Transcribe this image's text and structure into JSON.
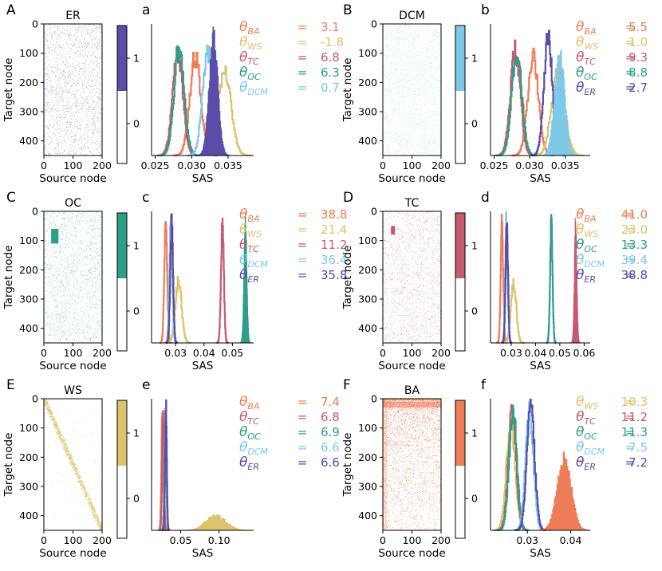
{
  "colors": {
    "ER": "#5a4ca8",
    "DCM": "#7ec8e8",
    "OC": "#2e9e86",
    "TC": "#c85a6e",
    "WS": "#dcc46c",
    "BA": "#ee7d57"
  },
  "common": {
    "source_label": "Source node",
    "target_label": "Target node",
    "sas_label": "SAS",
    "x_ticks": [
      "0",
      "100",
      "200"
    ],
    "y_ticks": [
      "0",
      "100",
      "200",
      "300",
      "400"
    ],
    "cb_ticks": [
      "0",
      "1"
    ]
  },
  "chart_data": [
    {
      "type": "heatmap",
      "panel": "A",
      "title": "ER",
      "model": "ER",
      "xlabel": "Source node",
      "ylabel": "Target node",
      "xlim": [
        0,
        200
      ],
      "ylim": [
        450,
        0
      ],
      "pattern": "uniform-sparse",
      "colorbar_ticks": [
        "0",
        "1"
      ]
    },
    {
      "type": "histogram",
      "panel": "a",
      "xlabel": "SAS",
      "model": "ER",
      "xlim": [
        0.0245,
        0.0385
      ],
      "xticks": [
        "0.025",
        "0.030",
        "0.035"
      ],
      "xtick_values": [
        0.025,
        0.03,
        0.035
      ],
      "series": [
        {
          "name": "BA",
          "mean": 0.0305,
          "sd": 0.00075,
          "style": "step"
        },
        {
          "name": "WS",
          "mean": 0.0345,
          "sd": 0.0009,
          "style": "step"
        },
        {
          "name": "TC",
          "mean": 0.0281,
          "sd": 0.0007,
          "style": "step"
        },
        {
          "name": "OC",
          "mean": 0.0283,
          "sd": 0.0007,
          "style": "step"
        },
        {
          "name": "DCM",
          "mean": 0.0322,
          "sd": 0.0007,
          "style": "step"
        },
        {
          "name": "ER",
          "mean": 0.033,
          "sd": 0.0006,
          "style": "filled"
        }
      ],
      "thetas": [
        {
          "label": "θ",
          "sub": "BA",
          "value": "3.1"
        },
        {
          "label": "θ",
          "sub": "WS",
          "value": "-1.8"
        },
        {
          "label": "θ",
          "sub": "TC",
          "value": "6.8"
        },
        {
          "label": "θ",
          "sub": "OC",
          "value": "6.3"
        },
        {
          "label": "θ",
          "sub": "DCM",
          "value": "0.7"
        }
      ]
    },
    {
      "type": "heatmap",
      "panel": "B",
      "title": "DCM",
      "model": "DCM",
      "xlabel": "Source node",
      "ylabel": "Target node",
      "xlim": [
        0,
        200
      ],
      "ylim": [
        450,
        0
      ],
      "pattern": "uniform-sparse",
      "colorbar_ticks": [
        "0",
        "1"
      ]
    },
    {
      "type": "histogram",
      "panel": "b",
      "xlabel": "SAS",
      "model": "DCM",
      "xlim": [
        0.0245,
        0.0385
      ],
      "xticks": [
        "0.025",
        "0.030",
        "0.035"
      ],
      "xtick_values": [
        0.025,
        0.03,
        0.035
      ],
      "series": [
        {
          "name": "BA",
          "mean": 0.0305,
          "sd": 0.00075,
          "style": "step"
        },
        {
          "name": "WS",
          "mean": 0.034,
          "sd": 0.0009,
          "style": "step"
        },
        {
          "name": "TC",
          "mean": 0.028,
          "sd": 0.0007,
          "style": "step"
        },
        {
          "name": "OC",
          "mean": 0.0282,
          "sd": 0.0007,
          "style": "step"
        },
        {
          "name": "ER",
          "mean": 0.0326,
          "sd": 0.0006,
          "style": "step"
        },
        {
          "name": "DCM",
          "mean": 0.0342,
          "sd": 0.0007,
          "style": "filled"
        }
      ],
      "thetas": [
        {
          "label": "θ",
          "sub": "BA",
          "value": "5.5"
        },
        {
          "label": "θ",
          "sub": "WS",
          "value": "1.0"
        },
        {
          "label": "θ",
          "sub": "TC",
          "value": "9.3"
        },
        {
          "label": "θ",
          "sub": "OC",
          "value": "8.8"
        },
        {
          "label": "θ",
          "sub": "ER",
          "value": "2.7"
        }
      ]
    },
    {
      "type": "heatmap",
      "panel": "C",
      "title": "OC",
      "model": "OC",
      "xlabel": "Source node",
      "ylabel": "Target node",
      "xlim": [
        0,
        200
      ],
      "ylim": [
        450,
        0
      ],
      "pattern": "block",
      "block": {
        "x0": 25,
        "x1": 50,
        "y0": 60,
        "y1": 110
      },
      "colorbar_ticks": [
        "0",
        "1"
      ]
    },
    {
      "type": "histogram",
      "panel": "c",
      "xlabel": "SAS",
      "model": "OC",
      "xlim": [
        0.0215,
        0.0575
      ],
      "xticks": [
        "0.03",
        "0.04",
        "0.05"
      ],
      "xtick_values": [
        0.03,
        0.04,
        0.05
      ],
      "series": [
        {
          "name": "BA",
          "mean": 0.0265,
          "sd": 0.0005,
          "style": "step"
        },
        {
          "name": "WS",
          "mean": 0.031,
          "sd": 0.0011,
          "style": "step"
        },
        {
          "name": "TC",
          "mean": 0.0465,
          "sd": 0.0005,
          "style": "step"
        },
        {
          "name": "DCM",
          "mean": 0.0283,
          "sd": 0.0005,
          "style": "step"
        },
        {
          "name": "ER",
          "mean": 0.0286,
          "sd": 0.0005,
          "style": "step"
        },
        {
          "name": "OC",
          "mean": 0.0546,
          "sd": 0.0005,
          "style": "filled"
        }
      ],
      "thetas": [
        {
          "label": "θ",
          "sub": "BA",
          "value": "38.8"
        },
        {
          "label": "θ",
          "sub": "WS",
          "value": "21.4"
        },
        {
          "label": "θ",
          "sub": "TC",
          "value": "11.2"
        },
        {
          "label": "θ",
          "sub": "DCM",
          "value": "36.4"
        },
        {
          "label": "θ",
          "sub": "ER",
          "value": "35.8"
        }
      ]
    },
    {
      "type": "heatmap",
      "panel": "D",
      "title": "TC",
      "model": "TC",
      "xlabel": "Source node",
      "ylabel": "Target node",
      "xlim": [
        0,
        200
      ],
      "ylim": [
        450,
        0
      ],
      "pattern": "block",
      "block": {
        "x0": 28,
        "x1": 42,
        "y0": 50,
        "y1": 80
      },
      "colorbar_ticks": [
        "0",
        "1"
      ]
    },
    {
      "type": "histogram",
      "panel": "d",
      "xlabel": "SAS",
      "model": "TC",
      "xlim": [
        0.0215,
        0.0625
      ],
      "xticks": [
        "0.03",
        "0.04",
        "0.05",
        "0.06"
      ],
      "xtick_values": [
        0.03,
        0.04,
        0.05,
        0.06
      ],
      "series": [
        {
          "name": "BA",
          "mean": 0.0262,
          "sd": 0.0005,
          "style": "step"
        },
        {
          "name": "WS",
          "mean": 0.031,
          "sd": 0.0011,
          "style": "step"
        },
        {
          "name": "OC",
          "mean": 0.0465,
          "sd": 0.0005,
          "style": "step"
        },
        {
          "name": "DCM",
          "mean": 0.028,
          "sd": 0.0005,
          "style": "step"
        },
        {
          "name": "ER",
          "mean": 0.0282,
          "sd": 0.0005,
          "style": "step"
        },
        {
          "name": "TC",
          "mean": 0.0565,
          "sd": 0.0005,
          "style": "filled"
        }
      ],
      "thetas": [
        {
          "label": "θ",
          "sub": "BA",
          "value": "41.0"
        },
        {
          "label": "θ",
          "sub": "WS",
          "value": "23.0"
        },
        {
          "label": "θ",
          "sub": "OC",
          "value": "13.3"
        },
        {
          "label": "θ",
          "sub": "DCM",
          "value": "39.4"
        },
        {
          "label": "θ",
          "sub": "ER",
          "value": "38.8"
        }
      ]
    },
    {
      "type": "heatmap",
      "panel": "E",
      "title": "WS",
      "model": "WS",
      "xlabel": "Source node",
      "ylabel": "Target node",
      "xlim": [
        0,
        200
      ],
      "ylim": [
        450,
        0
      ],
      "pattern": "diagonal",
      "colorbar_ticks": [
        "0",
        "1"
      ]
    },
    {
      "type": "histogram",
      "panel": "e",
      "xlabel": "SAS",
      "model": "WS",
      "xlim": [
        0.012,
        0.145
      ],
      "xticks": [
        "0.05",
        "0.10"
      ],
      "xtick_values": [
        0.05,
        0.1
      ],
      "series": [
        {
          "name": "BA",
          "mean": 0.026,
          "sd": 0.0012,
          "style": "step"
        },
        {
          "name": "TC",
          "mean": 0.027,
          "sd": 0.0012,
          "style": "step"
        },
        {
          "name": "OC",
          "mean": 0.03,
          "sd": 0.0012,
          "style": "step"
        },
        {
          "name": "DCM",
          "mean": 0.0305,
          "sd": 0.0011,
          "style": "step"
        },
        {
          "name": "ER",
          "mean": 0.0308,
          "sd": 0.0011,
          "style": "step"
        },
        {
          "name": "WS",
          "mean": 0.096,
          "sd": 0.013,
          "style": "filled"
        }
      ],
      "thetas": [
        {
          "label": "θ",
          "sub": "BA",
          "value": "7.4"
        },
        {
          "label": "θ",
          "sub": "TC",
          "value": "6.8"
        },
        {
          "label": "θ",
          "sub": "OC",
          "value": "6.9"
        },
        {
          "label": "θ",
          "sub": "DCM",
          "value": "6.6"
        },
        {
          "label": "θ",
          "sub": "ER",
          "value": "6.6"
        }
      ]
    },
    {
      "type": "heatmap",
      "panel": "F",
      "title": "BA",
      "model": "BA",
      "xlabel": "Source node",
      "ylabel": "Target node",
      "xlim": [
        0,
        200
      ],
      "ylim": [
        450,
        0
      ],
      "pattern": "preferential",
      "colorbar_ticks": [
        "0",
        "1"
      ]
    },
    {
      "type": "histogram",
      "panel": "f",
      "xlabel": "SAS",
      "model": "BA",
      "xlim": [
        0.0215,
        0.0445
      ],
      "xticks": [
        "0.03",
        "0.04"
      ],
      "xtick_values": [
        0.03,
        0.04
      ],
      "series": [
        {
          "name": "WS",
          "mean": 0.0262,
          "sd": 0.001,
          "style": "step"
        },
        {
          "name": "TC",
          "mean": 0.0265,
          "sd": 0.0009,
          "style": "step"
        },
        {
          "name": "OC",
          "mean": 0.0267,
          "sd": 0.0009,
          "style": "step"
        },
        {
          "name": "DCM",
          "mean": 0.0305,
          "sd": 0.0009,
          "style": "step"
        },
        {
          "name": "ER",
          "mean": 0.0308,
          "sd": 0.0009,
          "style": "step"
        },
        {
          "name": "BA",
          "mean": 0.0385,
          "sd": 0.0016,
          "style": "filled"
        }
      ],
      "thetas": [
        {
          "label": "θ",
          "sub": "WS",
          "value": "10.3"
        },
        {
          "label": "θ",
          "sub": "TC",
          "value": "11.2"
        },
        {
          "label": "θ",
          "sub": "OC",
          "value": "11.3"
        },
        {
          "label": "θ",
          "sub": "DCM",
          "value": "7.5"
        },
        {
          "label": "θ",
          "sub": "ER",
          "value": "7.2"
        }
      ]
    }
  ]
}
